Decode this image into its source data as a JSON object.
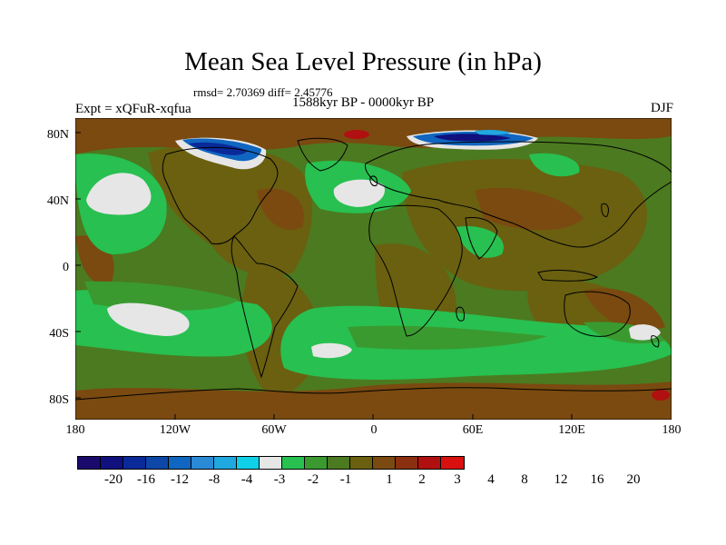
{
  "title": "Mean Sea Level Pressure (in hPa)",
  "stats": "rmsd= 2.70369  diff= 2.45776",
  "period": "1588kyr BP - 0000kyr BP",
  "experiment": "Expt = xQFuR-xqfua",
  "season": "DJF",
  "lat_ticks": [
    "80N",
    "40N",
    "0",
    "40S",
    "80S"
  ],
  "lon_ticks": [
    "180",
    "120W",
    "60W",
    "0",
    "60E",
    "120E",
    "180"
  ],
  "colorbar": {
    "labels": [
      "-20",
      "-16",
      "-12",
      "-8",
      "-4",
      "-3",
      "-2",
      "-1",
      "1",
      "2",
      "3",
      "4",
      "8",
      "12",
      "16",
      "20"
    ],
    "colors": [
      "#1a0a6b",
      "#10107e",
      "#0a2a9a",
      "#0d47a8",
      "#1066c0",
      "#2a8ad6",
      "#20a8e0",
      "#10d0e8",
      "#e6e6e6",
      "#28c050",
      "#3a9a30",
      "#4c7a20",
      "#6a6010",
      "#7a4a10",
      "#8a3010",
      "#b01010",
      "#d81010"
    ]
  },
  "colors": {
    "ocean_base": "#4c7a20",
    "land_base": "#6a6010",
    "light_green": "#28c050",
    "mid_green": "#3a9a30",
    "brown": "#7a4a10",
    "near_zero": "#e6e6e6"
  }
}
